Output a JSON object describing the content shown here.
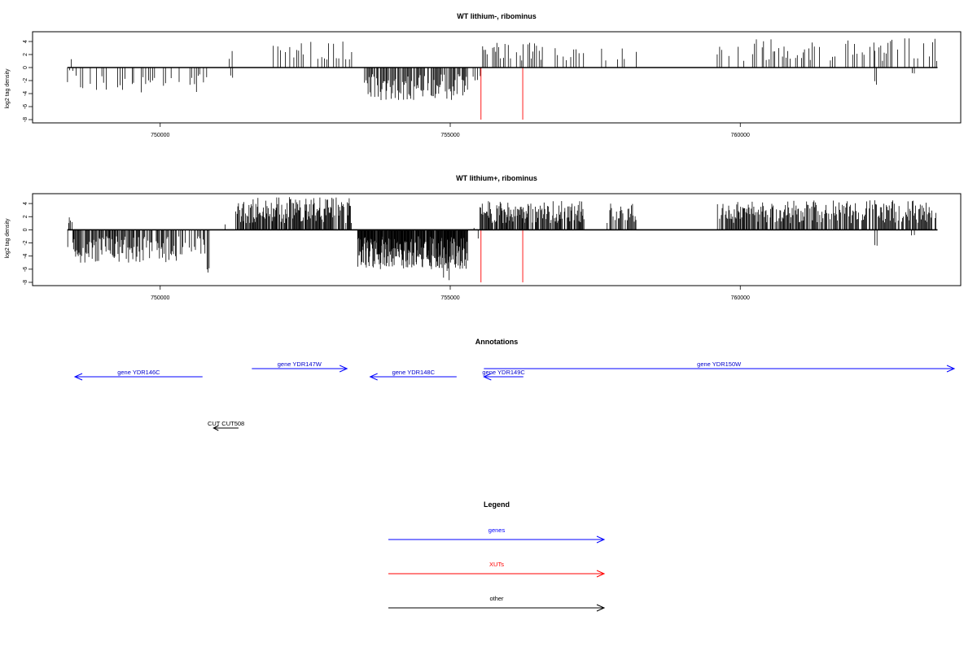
{
  "colors": {
    "genes": "#0000ff",
    "xuts": "#ff0000",
    "other": "#000000",
    "signal": "#000000"
  },
  "chart_data": [
    {
      "type": "bar",
      "title": "WT lithium-, ribominus",
      "ylabel": "log2 tag density",
      "xlim": [
        747800,
        763800
      ],
      "ylim": [
        -8.5,
        5.5
      ],
      "x_ticks": [
        750000,
        755000,
        760000
      ],
      "y_ticks": [
        4,
        2,
        0,
        -2,
        -4,
        -6,
        -8
      ],
      "baseline": {
        "x_start": 748400,
        "x_end": 763400,
        "y": 0
      },
      "xut_markers": [
        {
          "x": 755530,
          "y": -8
        },
        {
          "x": 756250,
          "y": -8
        }
      ],
      "signal_segments": [
        {
          "start": 748400,
          "end": 748500,
          "min": -3,
          "max": 2,
          "step": 28,
          "density": 0.8
        },
        {
          "start": 748500,
          "end": 750000,
          "min": -4,
          "max": -1,
          "step": 40,
          "density": 0.5
        },
        {
          "start": 750000,
          "end": 750350,
          "min": -3,
          "max": -1,
          "step": 45,
          "density": 0.6
        },
        {
          "start": 750500,
          "end": 750800,
          "min": -4,
          "max": -1,
          "step": 30,
          "density": 0.7
        },
        {
          "start": 751150,
          "end": 751250,
          "min": 1,
          "max": 3,
          "step": 40,
          "density": 0.8
        },
        {
          "start": 751200,
          "end": 751250,
          "min": -2,
          "max": -1,
          "step": 40,
          "density": 0.8
        },
        {
          "start": 751700,
          "end": 753300,
          "min": 1,
          "max": 4,
          "step": 40,
          "density": 0.55
        },
        {
          "start": 753500,
          "end": 755300,
          "min": -5,
          "max": -1,
          "step": 16,
          "density": 0.85
        },
        {
          "start": 755300,
          "end": 755500,
          "min": -2,
          "max": -1,
          "step": 40,
          "density": 0.5
        },
        {
          "start": 755550,
          "end": 756600,
          "min": 1,
          "max": 4,
          "step": 28,
          "density": 0.6
        },
        {
          "start": 756800,
          "end": 757300,
          "min": 1,
          "max": 3,
          "step": 45,
          "density": 0.5
        },
        {
          "start": 757600,
          "end": 758200,
          "min": 1,
          "max": 3,
          "step": 35,
          "density": 0.6
        },
        {
          "start": 759600,
          "end": 763400,
          "min": 1,
          "max": 4.5,
          "step": 32,
          "density": 0.6
        },
        {
          "start": 762300,
          "end": 762350,
          "min": -3,
          "max": -2,
          "step": 40,
          "density": 1
        },
        {
          "start": 762950,
          "end": 763000,
          "min": -1,
          "max": -0.8,
          "step": 40,
          "density": 1
        }
      ]
    },
    {
      "type": "bar",
      "title": "WT lithium+, ribominus",
      "ylabel": "log2 tag density",
      "xlim": [
        747800,
        763800
      ],
      "ylim": [
        -8.5,
        5.5
      ],
      "x_ticks": [
        750000,
        755000,
        760000
      ],
      "y_ticks": [
        4,
        2,
        0,
        -2,
        -4,
        -6,
        -8
      ],
      "baseline": {
        "x_start": 748400,
        "x_end": 763400,
        "y": 0
      },
      "xut_markers": [
        {
          "x": 755530,
          "y": -8
        },
        {
          "x": 756250,
          "y": -8
        }
      ],
      "signal_segments": [
        {
          "start": 748400,
          "end": 748500,
          "min": -3,
          "max": 4,
          "step": 15,
          "density": 0.9
        },
        {
          "start": 748500,
          "end": 750300,
          "min": -5,
          "max": -1,
          "step": 14,
          "density": 0.85
        },
        {
          "start": 750300,
          "end": 750800,
          "min": -4,
          "max": -1,
          "step": 18,
          "density": 0.7
        },
        {
          "start": 750800,
          "end": 750850,
          "min": -6.5,
          "max": -5,
          "step": 20,
          "density": 1
        },
        {
          "start": 751100,
          "end": 751300,
          "min": 0.5,
          "max": 1,
          "step": 40,
          "density": 0.4
        },
        {
          "start": 751300,
          "end": 753300,
          "min": 1,
          "max": 5,
          "step": 12,
          "density": 0.9
        },
        {
          "start": 753400,
          "end": 755300,
          "min": -6,
          "max": -1,
          "step": 8,
          "density": 0.95
        },
        {
          "start": 754800,
          "end": 755000,
          "min": -8,
          "max": -5,
          "step": 20,
          "density": 0.6
        },
        {
          "start": 755300,
          "end": 755500,
          "min": -2,
          "max": 1,
          "step": 25,
          "density": 0.6
        },
        {
          "start": 755500,
          "end": 757300,
          "min": 1,
          "max": 4.5,
          "step": 12,
          "density": 0.85
        },
        {
          "start": 757700,
          "end": 758200,
          "min": 1,
          "max": 4,
          "step": 15,
          "density": 0.8
        },
        {
          "start": 759600,
          "end": 763400,
          "min": 1,
          "max": 4.5,
          "step": 14,
          "density": 0.85
        },
        {
          "start": 762300,
          "end": 762350,
          "min": -2.5,
          "max": -2,
          "step": 40,
          "density": 1
        },
        {
          "start": 762950,
          "end": 763000,
          "min": -1,
          "max": -0.8,
          "step": 40,
          "density": 1
        }
      ]
    }
  ],
  "annotations": {
    "title": "Annotations",
    "genes": [
      {
        "label": "gene YDR146C",
        "x1": 748530,
        "x2": 750730,
        "row": "lower"
      },
      {
        "label": "gene YDR147W",
        "x1": 751580,
        "x2": 753220,
        "row": "upper"
      },
      {
        "label": "gene YDR148C",
        "x1": 753620,
        "x2": 755110,
        "row": "lower"
      },
      {
        "label": "gene YDR149C",
        "x1": 755580,
        "x2": 756260,
        "row": "lower"
      },
      {
        "label": "gene YDR150W",
        "x1": 755580,
        "x2": 764000,
        "row": "upper"
      }
    ],
    "other": [
      {
        "label": "CUT CUT508",
        "x1": 750920,
        "x2": 751350
      }
    ]
  },
  "legend": {
    "title": "Legend",
    "items": [
      {
        "label": "genes",
        "type": "genes"
      },
      {
        "label": "XUTs",
        "type": "xuts"
      },
      {
        "label": "other",
        "type": "other"
      }
    ]
  }
}
